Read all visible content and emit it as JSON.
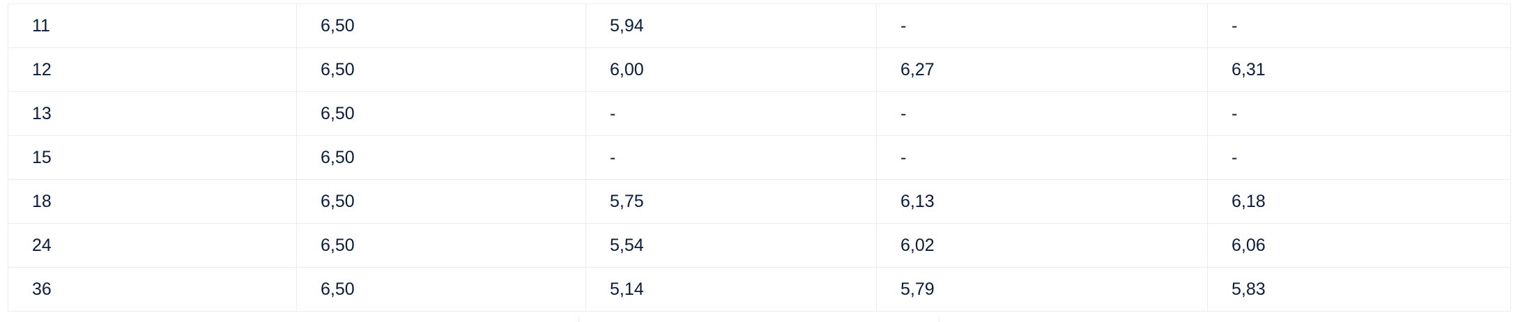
{
  "rows": [
    [
      "11",
      "6,50",
      "5,94",
      "-",
      "-"
    ],
    [
      "12",
      "6,50",
      "6,00",
      "6,27",
      "6,31"
    ],
    [
      "13",
      "6,50",
      "-",
      "-",
      "-"
    ],
    [
      "15",
      "6,50",
      "-",
      "-",
      "-"
    ],
    [
      "18",
      "6,50",
      "5,75",
      "6,13",
      "6,18"
    ],
    [
      "24",
      "6,50",
      "5,54",
      "6,02",
      "6,06"
    ],
    [
      "36",
      "6,50",
      "5,14",
      "5,79",
      "5,83"
    ]
  ]
}
